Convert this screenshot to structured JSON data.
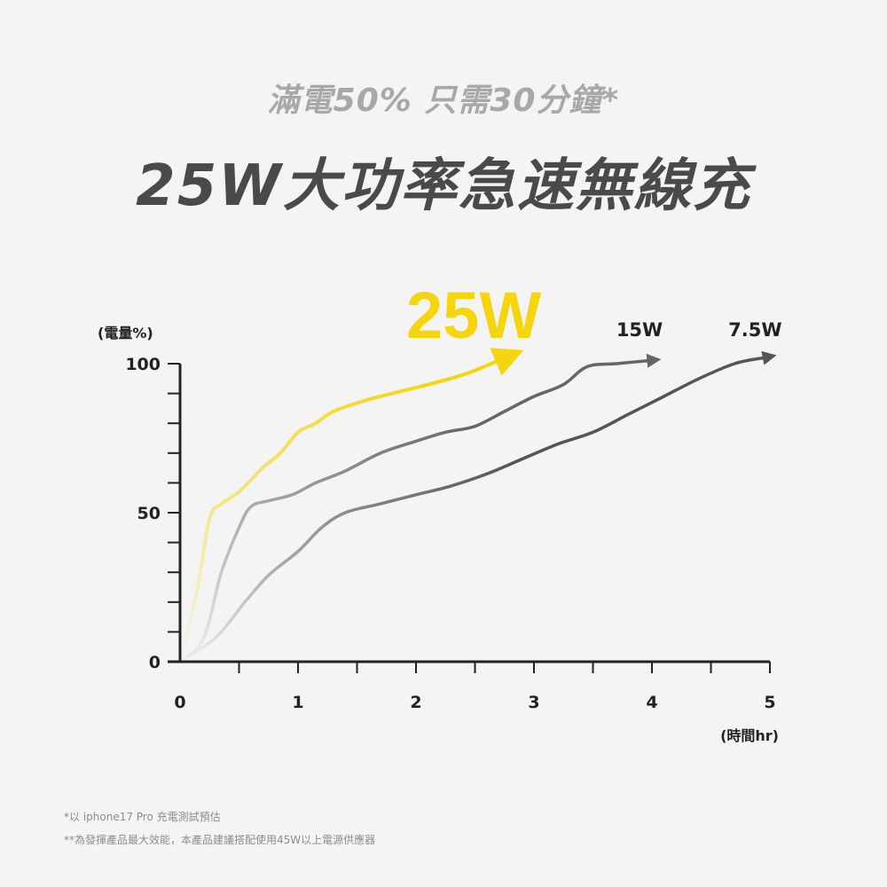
{
  "header": {
    "subtitle": "滿電50% 只需30分鐘*",
    "title": "25W大功率急速無線充"
  },
  "colors": {
    "accent": "#f5d60e",
    "series_15w": "#666666",
    "series_7_5w": "#555555",
    "axis": "#222222",
    "title": "#4a4a4a",
    "subtitle": "#a8a8a8"
  },
  "chart_data": {
    "type": "line",
    "xlabel": "(時間hr)",
    "ylabel": "(電量%)",
    "xlim": [
      0,
      5
    ],
    "ylim": [
      0,
      100
    ],
    "x_ticks": [
      "0",
      "1",
      "2",
      "3",
      "4",
      "5"
    ],
    "y_ticks": [
      "0",
      "50",
      "100"
    ],
    "grid": false,
    "series": [
      {
        "name": "25W",
        "color": "#f5d60e",
        "emphasis": true,
        "points": [
          [
            0,
            0
          ],
          [
            0.05,
            8
          ],
          [
            0.15,
            25
          ],
          [
            0.25,
            48
          ],
          [
            0.35,
            53
          ],
          [
            0.5,
            57
          ],
          [
            0.7,
            65
          ],
          [
            0.85,
            70
          ],
          [
            1.0,
            77
          ],
          [
            1.15,
            80
          ],
          [
            1.3,
            84
          ],
          [
            1.6,
            88
          ],
          [
            1.9,
            91
          ],
          [
            2.2,
            94
          ],
          [
            2.45,
            97
          ],
          [
            2.7,
            101
          ]
        ]
      },
      {
        "name": "15W",
        "color": "#666666",
        "points": [
          [
            0,
            0
          ],
          [
            0.2,
            8
          ],
          [
            0.35,
            30
          ],
          [
            0.5,
            45
          ],
          [
            0.6,
            52
          ],
          [
            0.75,
            54
          ],
          [
            0.95,
            56
          ],
          [
            1.15,
            60
          ],
          [
            1.4,
            64
          ],
          [
            1.7,
            70
          ],
          [
            2.0,
            74
          ],
          [
            2.25,
            77
          ],
          [
            2.5,
            79
          ],
          [
            2.75,
            84
          ],
          [
            3.0,
            89
          ],
          [
            3.25,
            93
          ],
          [
            3.45,
            99
          ],
          [
            3.7,
            100
          ],
          [
            3.97,
            101
          ]
        ]
      },
      {
        "name": "7.5W",
        "color": "#555555",
        "points": [
          [
            0,
            0
          ],
          [
            0.3,
            8
          ],
          [
            0.55,
            20
          ],
          [
            0.75,
            29
          ],
          [
            1.0,
            37
          ],
          [
            1.2,
            45
          ],
          [
            1.4,
            50
          ],
          [
            1.7,
            53
          ],
          [
            2.0,
            56
          ],
          [
            2.3,
            59
          ],
          [
            2.6,
            63
          ],
          [
            2.9,
            68
          ],
          [
            3.2,
            73
          ],
          [
            3.5,
            77
          ],
          [
            3.8,
            83
          ],
          [
            4.1,
            89
          ],
          [
            4.4,
            95
          ],
          [
            4.7,
            100
          ],
          [
            4.95,
            102
          ]
        ]
      }
    ]
  },
  "footnotes": {
    "note1": "*以 iphone17 Pro 充電測試預估",
    "note2": "**為發揮產品最大效能，本產品建議搭配使用45W以上電源供應器"
  }
}
